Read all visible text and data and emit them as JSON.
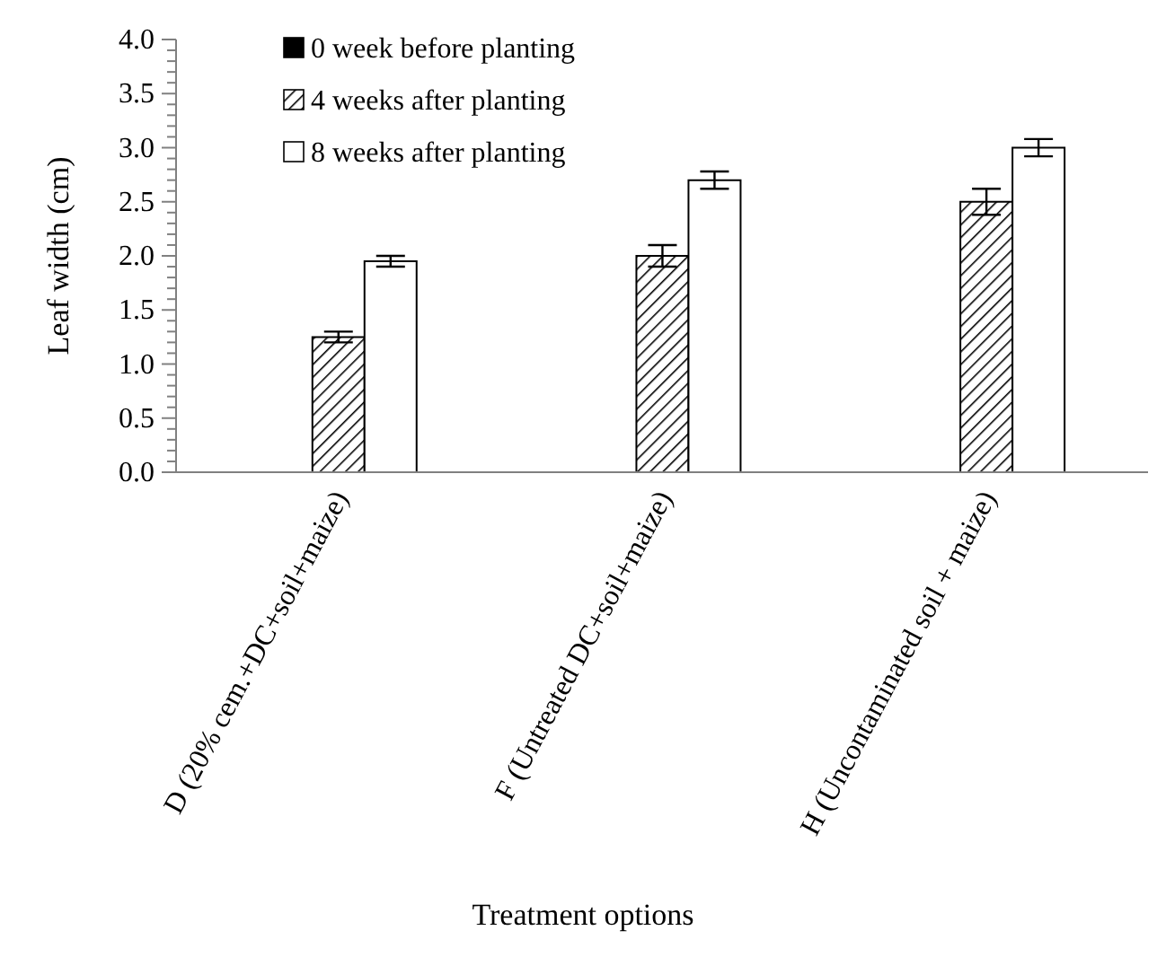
{
  "chart_data": {
    "type": "bar",
    "xlabel": "Treatment options",
    "ylabel": "Leaf width (cm)",
    "categories": [
      "D (20% cem.+DC+soil+maize)",
      "F (Untreated DC+soil+maize)",
      "H (Uncontaminated soil + maize)"
    ],
    "series": [
      {
        "name": "0 week before planting",
        "color": "#000000",
        "values": [
          0,
          0,
          0
        ]
      },
      {
        "name": "4 weeks after planting",
        "color": "#000000",
        "values": [
          1.25,
          2.0,
          2.5
        ],
        "errors": [
          0.05,
          0.1,
          0.12
        ]
      },
      {
        "name": "8 weeks after planting",
        "color": "#ffffff",
        "values": [
          1.95,
          2.7,
          3.0
        ],
        "errors": [
          0.05,
          0.08,
          0.08
        ]
      }
    ],
    "ylim": [
      0,
      4
    ],
    "yticks": [
      "0.0",
      {
        "value": 0.1,
        "label": null
      },
      {
        "value": 0.2,
        "label": null
      },
      {
        "value": 0.3,
        "label": null
      },
      {
        "value": 0.4,
        "label": null
      },
      {
        "value": 0.5,
        "label": "0.5"
      },
      {
        "value": 0.6,
        "label": null
      },
      {
        "value": 0.7,
        "label": null
      },
      {
        "value": 0.8,
        "label": null
      },
      {
        "value": 0.9,
        "label": null
      },
      {
        "value": 1,
        "label": "1.0"
      },
      {
        "value": 1.1,
        "label": null
      },
      {
        "value": 1.2,
        "label": null
      },
      {
        "value": 1.3,
        "label": null
      },
      {
        "value": 1.4,
        "label": null
      },
      {
        "value": 1.5,
        "label": "1.5"
      },
      {
        "value": 1.6,
        "label": null
      },
      {
        "value": 1.7,
        "label": null
      },
      {
        "value": 1.8,
        "label": null
      },
      {
        "value": 1.9,
        "label": null
      },
      {
        "value": 2,
        "label": "2.0"
      },
      {
        "value": 2.1,
        "label": null
      },
      {
        "value": 2.2,
        "label": null
      },
      {
        "value": 2.3,
        "label": null
      },
      {
        "value": 2.4,
        "label": null
      },
      {
        "value": 2.5,
        "label": "2.5"
      },
      {
        "value": 2.6,
        "label": null
      },
      {
        "value": 2.7,
        "label": null
      },
      {
        "value": 2.8,
        "label": null
      },
      {
        "value": 2.9,
        "label": null
      },
      {
        "value": 3,
        "label": "3.0"
      },
      {
        "value": 3.1,
        "label": null
      },
      {
        "value": 3.2,
        "label": null
      },
      {
        "value": 3.3,
        "label": null
      },
      {
        "value": 3.4,
        "label": null
      },
      {
        "value": 3.5,
        "label": "3.5"
      },
      {
        "value": 3.6,
        "label": null
      },
      {
        "value": 3.7,
        "label": null
      },
      {
        "value": 3.8,
        "label": null
      },
      {
        "value": 3.9,
        "label": null
      },
      {
        "value": 4,
        "label": "4.0"
      }
    ],
    "legend": "top left"
  }
}
